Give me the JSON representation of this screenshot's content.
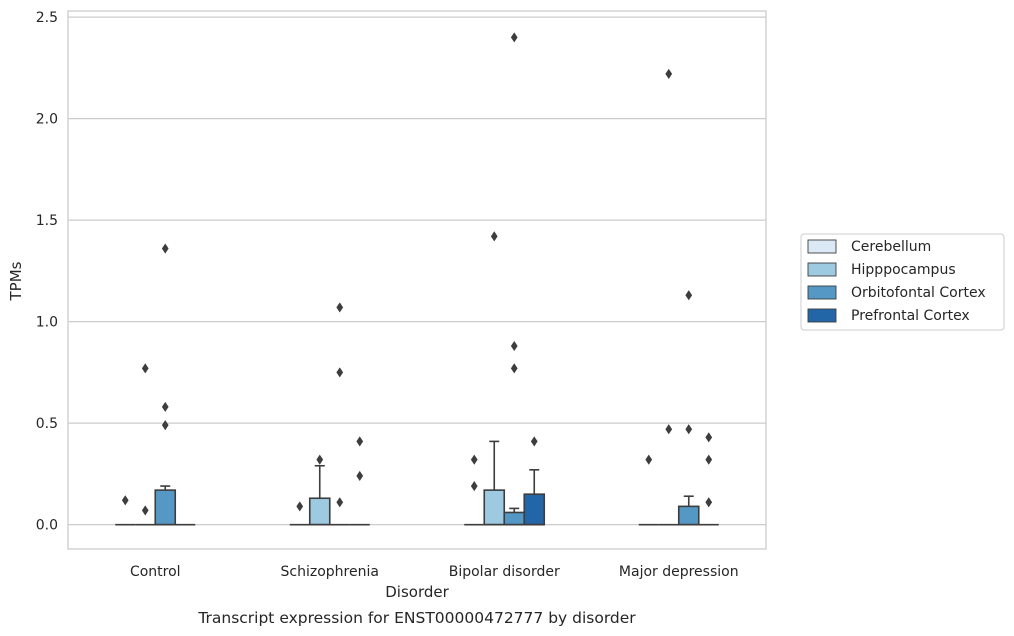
{
  "chart_data": {
    "type": "box",
    "xlabel": "Disorder",
    "ylabel": "TPMs",
    "caption": "Transcript expression for ENST00000472777 by disorder",
    "ylim": [
      -0.12,
      2.53
    ],
    "yticks": [
      "0.0",
      "0.5",
      "1.0",
      "1.5",
      "2.0",
      "2.5"
    ],
    "ytick_values": [
      0,
      0.5,
      1.0,
      1.5,
      2.0,
      2.5
    ],
    "grid": true,
    "legend_position": "right",
    "categories": [
      "Control",
      "Schizophrenia",
      "Bipolar disorder",
      "Major depression"
    ],
    "series": [
      {
        "name": "Cerebellum",
        "color": "#dbe9f6"
      },
      {
        "name": "Hipppocampus",
        "color": "#9ecae1"
      },
      {
        "name": "Orbitofontal Cortex",
        "color": "#5598c5"
      },
      {
        "name": "Prefrontal Cortex",
        "color": "#2366a8"
      }
    ],
    "boxes": [
      [
        {
          "q1": 0,
          "median": 0,
          "q3": 0,
          "whisker_low": 0,
          "whisker_high": 0,
          "outliers": [
            0.12
          ]
        },
        {
          "q1": 0,
          "median": 0,
          "q3": 0,
          "whisker_low": 0,
          "whisker_high": 0,
          "outliers": [
            0.07,
            0.77
          ]
        },
        {
          "q1": 0,
          "median": 0,
          "q3": 0.17,
          "whisker_low": 0,
          "whisker_high": 0.19,
          "outliers": [
            0.49,
            0.58,
            1.36
          ]
        },
        {
          "q1": 0,
          "median": 0,
          "q3": 0,
          "whisker_low": 0,
          "whisker_high": 0,
          "outliers": []
        }
      ],
      [
        {
          "q1": 0,
          "median": 0,
          "q3": 0,
          "whisker_low": 0,
          "whisker_high": 0,
          "outliers": [
            0.09
          ]
        },
        {
          "q1": 0,
          "median": 0,
          "q3": 0.13,
          "whisker_low": 0,
          "whisker_high": 0.29,
          "outliers": [
            0.32
          ]
        },
        {
          "q1": 0,
          "median": 0,
          "q3": 0,
          "whisker_low": 0,
          "whisker_high": 0,
          "outliers": [
            0.11,
            0.75,
            1.07
          ]
        },
        {
          "q1": 0,
          "median": 0,
          "q3": 0,
          "whisker_low": 0,
          "whisker_high": 0,
          "outliers": [
            0.24,
            0.41
          ]
        }
      ],
      [
        {
          "q1": 0,
          "median": 0,
          "q3": 0,
          "whisker_low": 0,
          "whisker_high": 0,
          "outliers": [
            0.19,
            0.32
          ]
        },
        {
          "q1": 0,
          "median": 0,
          "q3": 0.17,
          "whisker_low": 0,
          "whisker_high": 0.41,
          "outliers": [
            1.42
          ]
        },
        {
          "q1": 0,
          "median": 0,
          "q3": 0.06,
          "whisker_low": 0,
          "whisker_high": 0.08,
          "outliers": [
            0.77,
            0.88,
            2.4
          ]
        },
        {
          "q1": 0,
          "median": 0,
          "q3": 0.15,
          "whisker_low": 0,
          "whisker_high": 0.27,
          "outliers": [
            0.41
          ]
        }
      ],
      [
        {
          "q1": 0,
          "median": 0,
          "q3": 0,
          "whisker_low": 0,
          "whisker_high": 0,
          "outliers": [
            0.32
          ]
        },
        {
          "q1": 0,
          "median": 0,
          "q3": 0,
          "whisker_low": 0,
          "whisker_high": 0,
          "outliers": [
            0.47,
            2.22
          ]
        },
        {
          "q1": 0,
          "median": 0,
          "q3": 0.09,
          "whisker_low": 0,
          "whisker_high": 0.14,
          "outliers": [
            0.47,
            1.13
          ]
        },
        {
          "q1": 0,
          "median": 0,
          "q3": 0,
          "whisker_low": 0,
          "whisker_high": 0,
          "outliers": [
            0.11,
            0.32,
            0.43
          ]
        }
      ]
    ]
  }
}
